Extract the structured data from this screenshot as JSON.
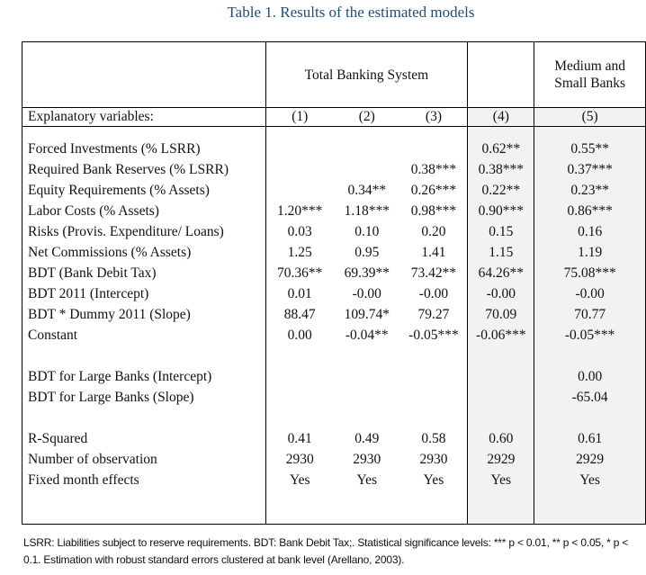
{
  "title": "Table 1. Results of the estimated models",
  "header": {
    "group1": "Total Banking System",
    "group2": "Medium and Small Banks"
  },
  "columns_label": "Explanatory variables:",
  "columns": [
    "(1)",
    "(2)",
    "(3)",
    "(4)",
    "(5)"
  ],
  "rows": [
    {
      "label": "Forced Investments (% LSRR)",
      "values": [
        "",
        "",
        "",
        "0.62**",
        "0.55**"
      ]
    },
    {
      "label": "Required Bank Reserves (% LSRR)",
      "values": [
        "",
        "",
        "0.38***",
        "0.38***",
        "0.37***"
      ]
    },
    {
      "label": "Equity Requirements (% Assets)",
      "values": [
        "",
        "0.34**",
        "0.26***",
        "0.22**",
        "0.23**"
      ]
    },
    {
      "label": "Labor Costs (% Assets)",
      "values": [
        "1.20***",
        "1.18***",
        "0.98***",
        "0.90***",
        "0.86***"
      ]
    },
    {
      "label": "Risks (Provis. Expenditure/ Loans)",
      "values": [
        "0.03",
        "0.10",
        "0.20",
        "0.15",
        "0.16"
      ]
    },
    {
      "label": "Net Commissions (% Assets)",
      "values": [
        "1.25",
        "0.95",
        "1.41",
        "1.15",
        "1.19"
      ]
    },
    {
      "label": "BDT (Bank Debit Tax)",
      "values": [
        "70.36**",
        "69.39**",
        "73.42**",
        "64.26**",
        "75.08***"
      ]
    },
    {
      "label": "BDT 2011 (Intercept)",
      "values": [
        "0.01",
        "-0.00",
        "-0.00",
        "-0.00",
        "-0.00"
      ]
    },
    {
      "label": "BDT * Dummy 2011 (Slope)",
      "values": [
        "88.47",
        "109.74*",
        "79.27",
        "70.09",
        "70.77"
      ]
    },
    {
      "label": "Constant",
      "values": [
        "0.00",
        "-0.04**",
        "-0.05***",
        "-0.06***",
        "-0.05***"
      ]
    }
  ],
  "large_rows": [
    {
      "label": "BDT for Large Banks (Intercept)",
      "values": [
        "",
        "",
        "",
        "",
        "0.00"
      ]
    },
    {
      "label": "BDT for Large Banks (Slope)",
      "values": [
        "",
        "",
        "",
        "",
        "-65.04"
      ]
    }
  ],
  "stats_rows": [
    {
      "label": "R-Squared",
      "values": [
        "0.41",
        "0.49",
        "0.58",
        "0.60",
        "0.61"
      ]
    },
    {
      "label": "Number of observation",
      "values": [
        "2930",
        "2930",
        "2930",
        "2929",
        "2929"
      ]
    },
    {
      "label": "Fixed month effects",
      "values": [
        "Yes",
        "Yes",
        "Yes",
        "Yes",
        "Yes"
      ]
    }
  ],
  "note": "LSRR:  Liabilities subject to reserve requirements. BDT: Bank Debit Tax;. Statistical significance levels: *** p < 0.01, ** p < 0.05, * p < 0.1. Estimation with robust standard errors clustered at bank level (Arellano, 2003)."
}
